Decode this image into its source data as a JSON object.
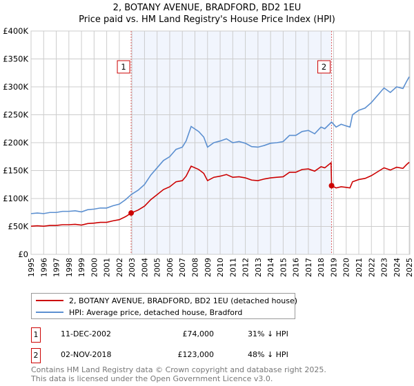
{
  "chart_data": {
    "type": "line",
    "title": "2, BOTANY AVENUE, BRADFORD, BD2 1EU",
    "subtitle": "Price paid vs. HM Land Registry's House Price Index (HPI)",
    "xlabel": "",
    "ylabel": "",
    "xlim": [
      1995,
      2025.05
    ],
    "ylim": [
      0,
      400000
    ],
    "x_ticks": [
      "1995",
      "1996",
      "1997",
      "1998",
      "1999",
      "2000",
      "2001",
      "2002",
      "2003",
      "2004",
      "2005",
      "2006",
      "2007",
      "2008",
      "2009",
      "2010",
      "2011",
      "2012",
      "2013",
      "2014",
      "2015",
      "2016",
      "2017",
      "2018",
      "2019",
      "2020",
      "2021",
      "2022",
      "2023",
      "2024",
      "2025"
    ],
    "y_ticks": [
      {
        "value": 0,
        "label": "£0"
      },
      {
        "value": 50000,
        "label": "£50K"
      },
      {
        "value": 100000,
        "label": "£100K"
      },
      {
        "value": 150000,
        "label": "£150K"
      },
      {
        "value": 200000,
        "label": "£200K"
      },
      {
        "value": 250000,
        "label": "£250K"
      },
      {
        "value": 300000,
        "label": "£300K"
      },
      {
        "value": 350000,
        "label": "£350K"
      },
      {
        "value": 400000,
        "label": "£400K"
      }
    ],
    "grid": true,
    "shaded_range": [
      2002.94,
      2018.84
    ],
    "series": [
      {
        "name": "2, BOTANY AVENUE, BRADFORD, BD2 1EU (detached house)",
        "color": "#cc0000",
        "points": [
          [
            1995,
            50400
          ],
          [
            1995.5,
            51100
          ],
          [
            1996,
            50400
          ],
          [
            1996.5,
            51800
          ],
          [
            1997,
            51800
          ],
          [
            1997.5,
            53100
          ],
          [
            1998,
            53100
          ],
          [
            1998.5,
            53800
          ],
          [
            1999,
            52400
          ],
          [
            1999.5,
            55200
          ],
          [
            2000,
            55900
          ],
          [
            2000.5,
            57300
          ],
          [
            2001,
            57300
          ],
          [
            2001.5,
            60000
          ],
          [
            2002,
            62100
          ],
          [
            2002.5,
            67600
          ],
          [
            2002.94,
            74000
          ],
          [
            2003.5,
            79400
          ],
          [
            2004,
            86300
          ],
          [
            2004.5,
            98000
          ],
          [
            2005,
            107000
          ],
          [
            2005.5,
            116000
          ],
          [
            2006,
            121000
          ],
          [
            2006.5,
            130000
          ],
          [
            2007,
            132000
          ],
          [
            2007.3,
            140000
          ],
          [
            2007.7,
            158000
          ],
          [
            2008.3,
            152000
          ],
          [
            2008.7,
            145000
          ],
          [
            2009,
            132000
          ],
          [
            2009.5,
            138000
          ],
          [
            2010,
            140000
          ],
          [
            2010.5,
            143000
          ],
          [
            2011,
            138000
          ],
          [
            2011.5,
            139000
          ],
          [
            2012,
            137000
          ],
          [
            2012.5,
            133000
          ],
          [
            2013,
            132000
          ],
          [
            2013.5,
            135000
          ],
          [
            2014,
            137000
          ],
          [
            2014.5,
            138000
          ],
          [
            2015,
            139000
          ],
          [
            2015.5,
            147000
          ],
          [
            2016,
            147000
          ],
          [
            2016.5,
            152000
          ],
          [
            2017,
            153000
          ],
          [
            2017.5,
            149000
          ],
          [
            2018,
            157000
          ],
          [
            2018.3,
            155000
          ],
          [
            2018.8,
            164000
          ],
          [
            2018.84,
            123000
          ],
          [
            2019.2,
            119000
          ],
          [
            2019.6,
            121000
          ],
          [
            2020,
            120000
          ],
          [
            2020.3,
            119000
          ],
          [
            2020.5,
            130000
          ],
          [
            2021,
            134000
          ],
          [
            2021.5,
            136000
          ],
          [
            2022,
            141000
          ],
          [
            2022.5,
            148000
          ],
          [
            2023,
            155000
          ],
          [
            2023.5,
            151000
          ],
          [
            2024,
            156000
          ],
          [
            2024.5,
            154000
          ],
          [
            2024.8,
            161000
          ],
          [
            2025,
            165000
          ]
        ]
      },
      {
        "name": "HPI: Average price, detached house, Bradford",
        "color": "#5b8fd0",
        "points": [
          [
            1995,
            73000
          ],
          [
            1995.5,
            74000
          ],
          [
            1996,
            73000
          ],
          [
            1996.5,
            75000
          ],
          [
            1997,
            75000
          ],
          [
            1997.5,
            77000
          ],
          [
            1998,
            77000
          ],
          [
            1998.5,
            78000
          ],
          [
            1999,
            76000
          ],
          [
            1999.5,
            80000
          ],
          [
            2000,
            81000
          ],
          [
            2000.5,
            83000
          ],
          [
            2001,
            83000
          ],
          [
            2001.5,
            87000
          ],
          [
            2002,
            90000
          ],
          [
            2002.5,
            98000
          ],
          [
            2002.94,
            107000
          ],
          [
            2003.5,
            115000
          ],
          [
            2004,
            125000
          ],
          [
            2004.5,
            142000
          ],
          [
            2005,
            155000
          ],
          [
            2005.5,
            168000
          ],
          [
            2006,
            175000
          ],
          [
            2006.5,
            188000
          ],
          [
            2007,
            192000
          ],
          [
            2007.3,
            203000
          ],
          [
            2007.7,
            229000
          ],
          [
            2008.3,
            220000
          ],
          [
            2008.7,
            210000
          ],
          [
            2009,
            192000
          ],
          [
            2009.5,
            200000
          ],
          [
            2010,
            203000
          ],
          [
            2010.5,
            207000
          ],
          [
            2011,
            200000
          ],
          [
            2011.5,
            202000
          ],
          [
            2012,
            199000
          ],
          [
            2012.5,
            193000
          ],
          [
            2013,
            192000
          ],
          [
            2013.5,
            195000
          ],
          [
            2014,
            199000
          ],
          [
            2014.5,
            200000
          ],
          [
            2015,
            202000
          ],
          [
            2015.5,
            213000
          ],
          [
            2016,
            213000
          ],
          [
            2016.5,
            220000
          ],
          [
            2017,
            222000
          ],
          [
            2017.5,
            216000
          ],
          [
            2018,
            228000
          ],
          [
            2018.3,
            225000
          ],
          [
            2018.84,
            237000
          ],
          [
            2019.2,
            228000
          ],
          [
            2019.6,
            233000
          ],
          [
            2020,
            230000
          ],
          [
            2020.3,
            228000
          ],
          [
            2020.5,
            250000
          ],
          [
            2021,
            258000
          ],
          [
            2021.5,
            262000
          ],
          [
            2022,
            272000
          ],
          [
            2022.5,
            285000
          ],
          [
            2023,
            298000
          ],
          [
            2023.5,
            290000
          ],
          [
            2024,
            300000
          ],
          [
            2024.5,
            297000
          ],
          [
            2024.8,
            310000
          ],
          [
            2025,
            318000
          ]
        ]
      }
    ],
    "sales": [
      {
        "label": "1",
        "x": 2002.94,
        "value": 74000,
        "date": "11-DEC-2002",
        "price": "£74,000",
        "hpi": "31% ↓ HPI"
      },
      {
        "label": "2",
        "x": 2018.84,
        "value": 123000,
        "date": "02-NOV-2018",
        "price": "£123,000",
        "hpi": "48% ↓ HPI"
      }
    ]
  },
  "footer": {
    "line1": "Contains HM Land Registry data © Crown copyright and database right 2025.",
    "line2": "This data is licensed under the Open Government Licence v3.0."
  }
}
